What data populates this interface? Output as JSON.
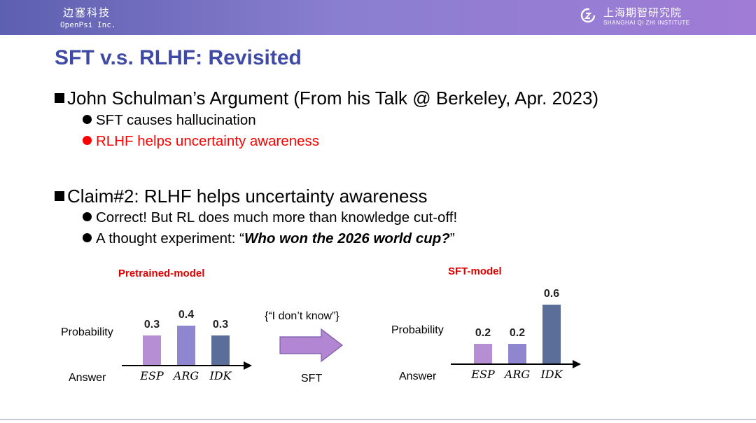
{
  "header": {
    "org_cn": "边塞科技",
    "org_en": "OpenPsi  Inc.",
    "institute_cn": "上海期智研究院",
    "institute_en": "SHANGHAI QI ZHI INSTITUTE",
    "logo_icon": "qizhi-logo"
  },
  "slide": {
    "title": "SFT v.s. RLHF: Revisited",
    "sections": [
      {
        "heading": "John Schulman’s Argument (From his Talk @ Berkeley, Apr. 2023)",
        "bullets": [
          {
            "text": "SFT causes hallucination"
          },
          {
            "text": "RLHF helps uncertainty awareness",
            "color": "#ff0000"
          }
        ]
      },
      {
        "heading": "Claim#2: RLHF helps uncertainty awareness",
        "bullets": [
          {
            "text": "Correct! But RL does much more than knowledge cut-off!"
          },
          {
            "text_prefix": "A thought experiment: “",
            "text_emph": "Who won the 2026 world cup?",
            "text_suffix": "”"
          }
        ]
      }
    ]
  },
  "transition": {
    "label_top": "{“I don’t know”}",
    "label_bottom": "SFT"
  },
  "chart_data": [
    {
      "type": "bar",
      "title": "Pretrained-model",
      "ylabel": "Probability",
      "xlabel": "Answer",
      "categories": [
        "ESP",
        "ARG",
        "IDK"
      ],
      "values": [
        0.3,
        0.4,
        0.3
      ],
      "value_labels": [
        "0.3",
        "0.4",
        "0.3"
      ],
      "colors": [
        "#b58ed4",
        "#8e86cf",
        "#5b6e99"
      ]
    },
    {
      "type": "bar",
      "title": "SFT-model",
      "ylabel": "Probability",
      "xlabel": "Answer",
      "categories": [
        "ESP",
        "ARG",
        "IDK"
      ],
      "values": [
        0.2,
        0.2,
        0.6
      ],
      "value_labels": [
        "0.2",
        "0.2",
        "0.6"
      ],
      "colors": [
        "#b58ed4",
        "#8e86cf",
        "#5b6e99"
      ]
    }
  ]
}
